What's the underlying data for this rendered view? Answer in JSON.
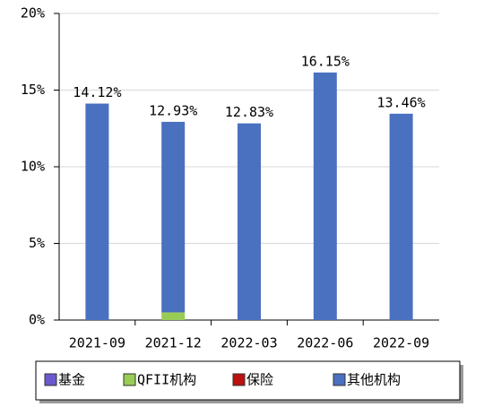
{
  "chart_data": {
    "type": "stacked-bar",
    "categories": [
      "2021-09",
      "2021-12",
      "2022-03",
      "2022-06",
      "2022-09"
    ],
    "series": [
      {
        "name": "基金",
        "color": "#6a5acd",
        "values": [
          0,
          0,
          0,
          0,
          0
        ]
      },
      {
        "name": "QFII机构",
        "color": "#99cc55",
        "values": [
          0,
          0.5,
          0,
          0,
          0
        ]
      },
      {
        "name": "保险",
        "color": "#bb1111",
        "values": [
          0,
          0,
          0,
          0,
          0
        ]
      },
      {
        "name": "其他机构",
        "color": "#4a70c0",
        "values": [
          14.12,
          12.43,
          12.83,
          16.15,
          13.46
        ]
      }
    ],
    "totals": [
      14.12,
      12.93,
      12.83,
      16.15,
      13.46
    ],
    "total_labels": [
      "14.12%",
      "12.93%",
      "12.83%",
      "16.15%",
      "13.46%"
    ],
    "ylim": [
      0,
      20
    ],
    "yticks": [
      {
        "value": 0,
        "label": "0%"
      },
      {
        "value": 5,
        "label": "5%"
      },
      {
        "value": 10,
        "label": "10%"
      },
      {
        "value": 15,
        "label": "15%"
      },
      {
        "value": 20,
        "label": "20%"
      }
    ],
    "grid": true
  }
}
